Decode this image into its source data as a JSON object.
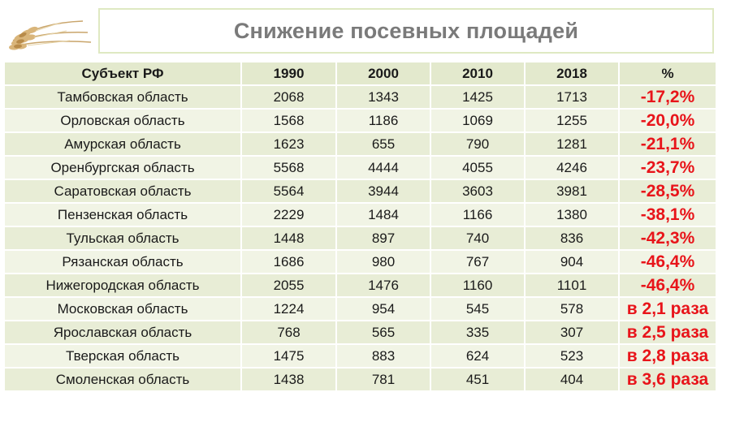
{
  "title": "Снижение посевных площадей",
  "table": {
    "headers": [
      "Субъект РФ",
      "1990",
      "2000",
      "2010",
      "2018",
      "%"
    ],
    "rows": [
      [
        "Тамбовская область",
        "2068",
        "1343",
        "1425",
        "1713",
        "-17,2%"
      ],
      [
        "Орловская область",
        "1568",
        "1186",
        "1069",
        "1255",
        "-20,0%"
      ],
      [
        "Амурская область",
        "1623",
        "655",
        "790",
        "1281",
        "-21,1%"
      ],
      [
        "Оренбургская область",
        "5568",
        "4444",
        "4055",
        "4246",
        "-23,7%"
      ],
      [
        "Саратовская область",
        "5564",
        "3944",
        "3603",
        "3981",
        "-28,5%"
      ],
      [
        "Пензенская область",
        "2229",
        "1484",
        "1166",
        "1380",
        "-38,1%"
      ],
      [
        "Тульская область",
        "1448",
        "897",
        "740",
        "836",
        "-42,3%"
      ],
      [
        "Рязанская область",
        "1686",
        "980",
        "767",
        "904",
        "-46,4%"
      ],
      [
        "Нижегородская область",
        "2055",
        "1476",
        "1160",
        "1101",
        "-46,4%"
      ],
      [
        "Московская область",
        "1224",
        "954",
        "545",
        "578",
        "в 2,1 раза"
      ],
      [
        "Ярославская область",
        "768",
        "565",
        "335",
        "307",
        "в 2,5 раза"
      ],
      [
        "Тверская область",
        "1475",
        "883",
        "624",
        "523",
        "в 2,8 раза"
      ],
      [
        "Смоленская область",
        "1438",
        "781",
        "451",
        "404",
        "в 3,6 раза"
      ]
    ]
  },
  "colors": {
    "accent_red": "#e8141a",
    "row_fill": "#e8edd6",
    "title_text": "#7a7a7a"
  },
  "icons": {
    "logo": "wheat-ears-icon"
  }
}
